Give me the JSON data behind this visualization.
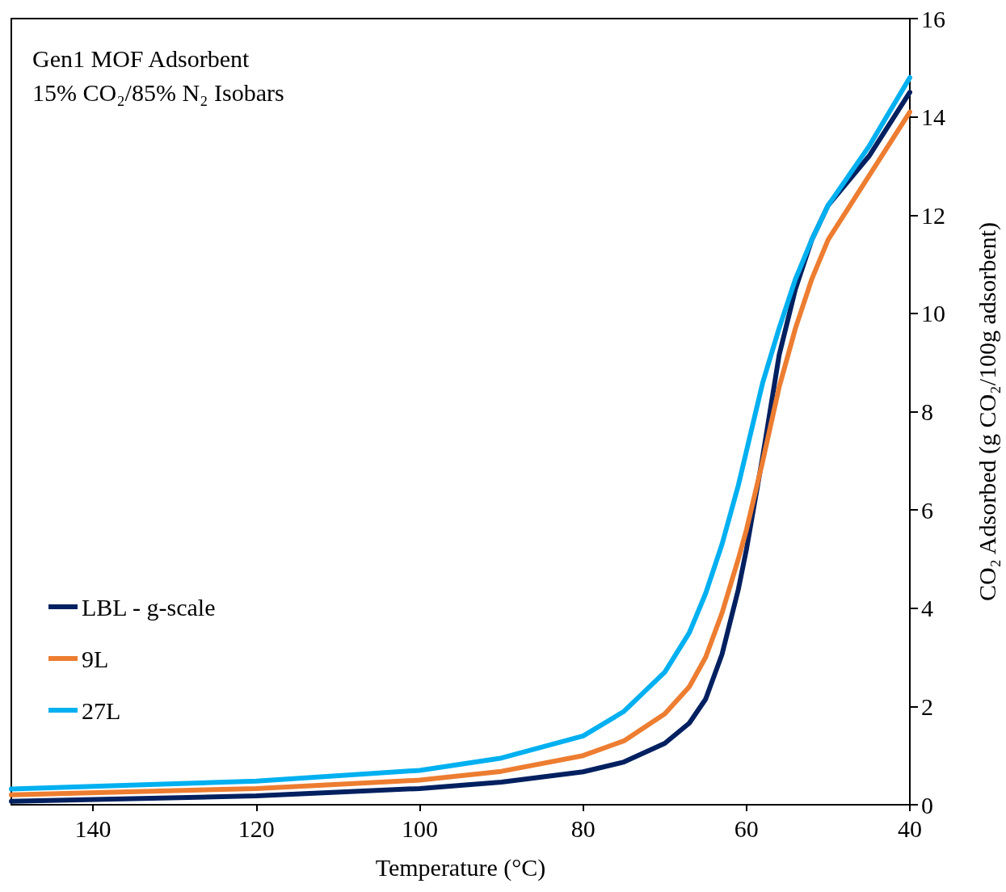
{
  "chart_data": {
    "type": "line",
    "title": "Gen1 MOF Adsorbent",
    "subtitle": "15% CO₂/85% N₂ Isobars",
    "xlabel": "Temperature (°C)",
    "ylabel": "CO₂ Adsorbed (g CO₂/100g adsorbent)",
    "x": [
      150,
      120,
      100,
      90,
      80,
      75,
      70,
      67,
      65,
      63,
      61,
      60,
      58,
      56,
      54,
      52,
      50,
      45,
      40
    ],
    "series": [
      {
        "name": "LBL - g-scale",
        "color": "#002060",
        "values": [
          0.07,
          0.18,
          0.33,
          0.46,
          0.67,
          0.87,
          1.25,
          1.66,
          2.15,
          3.06,
          4.38,
          5.2,
          7.1,
          9.15,
          10.5,
          11.5,
          12.2,
          13.2,
          14.5
        ]
      },
      {
        "name": "9L",
        "color": "#ed7d31",
        "values": [
          0.2,
          0.33,
          0.5,
          0.68,
          1.0,
          1.3,
          1.85,
          2.4,
          3.0,
          3.9,
          5.0,
          5.6,
          7.0,
          8.5,
          9.7,
          10.7,
          11.5,
          12.8,
          14.1
        ]
      },
      {
        "name": "27L",
        "color": "#00b0f0",
        "values": [
          0.32,
          0.48,
          0.7,
          0.95,
          1.4,
          1.9,
          2.7,
          3.5,
          4.3,
          5.3,
          6.5,
          7.2,
          8.6,
          9.7,
          10.7,
          11.5,
          12.2,
          13.4,
          14.8
        ]
      }
    ],
    "xlim": [
      150,
      40
    ],
    "xticks": [
      140,
      120,
      100,
      80,
      60,
      40
    ],
    "ylim": [
      0,
      16
    ],
    "yticks": [
      0,
      2,
      4,
      6,
      8,
      10,
      12,
      14,
      16
    ],
    "grid": false,
    "legend": "bottom left",
    "marker": "none",
    "line_style": "solid"
  }
}
